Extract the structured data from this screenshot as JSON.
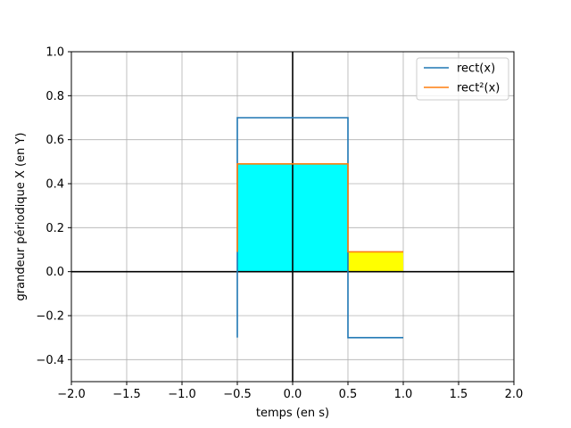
{
  "chart_data": {
    "type": "line",
    "title": "",
    "xlabel": "temps (en s)",
    "ylabel": "grandeur périodique X (en Y)",
    "xlim": [
      -2.0,
      2.0
    ],
    "ylim": [
      -0.5,
      1.0
    ],
    "grid": true,
    "x_ticks": [
      -2.0,
      -1.5,
      -1.0,
      -0.5,
      0.0,
      0.5,
      1.0,
      1.5,
      2.0
    ],
    "x_tick_labels": [
      "−2.0",
      "−1.5",
      "−1.0",
      "−0.5",
      "0.0",
      "0.5",
      "1.0",
      "1.5",
      "2.0"
    ],
    "y_ticks": [
      -0.4,
      -0.2,
      0.0,
      0.2,
      0.4,
      0.6,
      0.8,
      1.0
    ],
    "y_tick_labels": [
      "−0.4",
      "−0.2",
      "0.0",
      "0.2",
      "0.4",
      "0.6",
      "0.8",
      "1.0"
    ],
    "legend_position": "top-right",
    "series": [
      {
        "name": "rect(x)",
        "color": "#1f77b4",
        "x": [
          -0.5,
          -0.5,
          0.5,
          0.5,
          1.0
        ],
        "y": [
          -0.3,
          0.7,
          0.7,
          -0.3,
          -0.3
        ]
      },
      {
        "name": "rect²(x)",
        "color": "#ff7f0e",
        "x": [
          -0.5,
          -0.5,
          0.5,
          0.5,
          1.0
        ],
        "y": [
          0.09,
          0.49,
          0.49,
          0.09,
          0.09
        ]
      }
    ],
    "filled_regions": [
      {
        "x": [
          -0.5,
          0.5
        ],
        "y": [
          0.0,
          0.49
        ],
        "color": "#00ffff"
      },
      {
        "x": [
          0.5,
          1.0
        ],
        "y": [
          0.0,
          0.09
        ],
        "color": "#ffff00"
      }
    ],
    "reference_lines": [
      {
        "axis": "y",
        "value": 0.0,
        "color": "#000000"
      },
      {
        "axis": "x",
        "value": 0.0,
        "color": "#000000"
      }
    ]
  }
}
